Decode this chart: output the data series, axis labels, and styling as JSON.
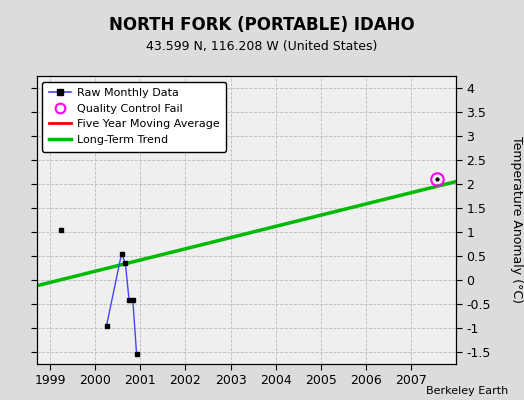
{
  "title": "NORTH FORK (PORTABLE) IDAHO",
  "subtitle": "43.599 N, 116.208 W (United States)",
  "ylabel": "Temperature Anomaly (°C)",
  "credit": "Berkeley Earth",
  "xlim": [
    1998.7,
    2008.0
  ],
  "ylim": [
    -1.75,
    4.25
  ],
  "yticks": [
    -1.5,
    -1.0,
    -0.5,
    0.0,
    0.5,
    1.0,
    1.5,
    2.0,
    2.5,
    3.0,
    3.5,
    4.0
  ],
  "xticks": [
    1999,
    2000,
    2001,
    2002,
    2003,
    2004,
    2005,
    2006,
    2007
  ],
  "bg_color": "#dcdcdc",
  "plot_bg_color": "#efefef",
  "raw_data_x": [
    1999.25,
    2000.25,
    2000.583,
    2000.667,
    2000.75,
    2000.833,
    2000.917
  ],
  "raw_data_y": [
    1.05,
    -0.95,
    0.55,
    0.35,
    -0.42,
    -0.42,
    -1.55
  ],
  "isolated_x": [
    1999.25
  ],
  "isolated_y": [
    1.05
  ],
  "qc_fail_x": [
    2007.58
  ],
  "qc_fail_y": [
    2.1
  ],
  "trend_x": [
    1998.7,
    2008.0
  ],
  "trend_y": [
    -0.12,
    2.05
  ],
  "raw_line_color": "#4444ff",
  "raw_marker_color": "black",
  "trend_color": "#00bb00",
  "qc_color": "magenta",
  "moving_avg_color": "red",
  "grid_color": "#bbbbbb"
}
